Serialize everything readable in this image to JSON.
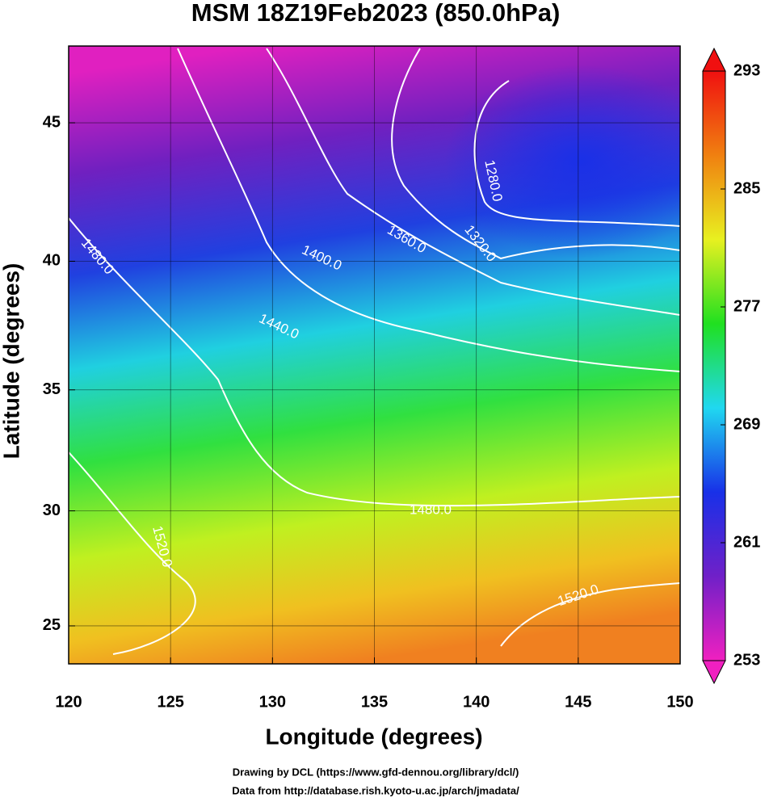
{
  "chart_data": {
    "type": "contour-map",
    "title": "MSM 18Z19Feb2023 (850.0hPa)",
    "x_label": "Longitude (degrees)",
    "y_label": "Latitude  (degrees)",
    "projection": "mercator",
    "xlim": [
      120,
      150
    ],
    "xticks": [
      120,
      125,
      130,
      135,
      140,
      145,
      150
    ],
    "ylim": [
      23.3,
      47.6
    ],
    "yticks": [
      25,
      30,
      35,
      40,
      45
    ],
    "contour_labels": [
      {
        "value": 1480,
        "label": "1480.0"
      },
      {
        "value": 1440,
        "label": "1440.0"
      },
      {
        "value": 1400,
        "label": "1400.0"
      },
      {
        "value": 1360,
        "label": "1360.0"
      },
      {
        "value": 1320,
        "label": "1320.0"
      },
      {
        "value": 1280,
        "label": "1280.0"
      },
      {
        "value": 1480,
        "label": "1480.0"
      },
      {
        "value": 1520,
        "label": "1520.0"
      },
      {
        "value": 1520,
        "label": "1520.0"
      }
    ],
    "colorbar": {
      "lim": [
        253,
        293
      ],
      "ticks": [
        253,
        261,
        269,
        277,
        285,
        293
      ],
      "colors": [
        "#f020c0",
        "#7020c8",
        "#1830e8",
        "#20d8f0",
        "#20e020",
        "#e8f020",
        "#f08010",
        "#f01010"
      ]
    },
    "footer": [
      "Drawing by DCL (https://www.gfd-dennou.org/library/dcl/)",
      "Data from http://database.rish.kyoto-u.ac.jp/arch/jmadata/"
    ]
  }
}
